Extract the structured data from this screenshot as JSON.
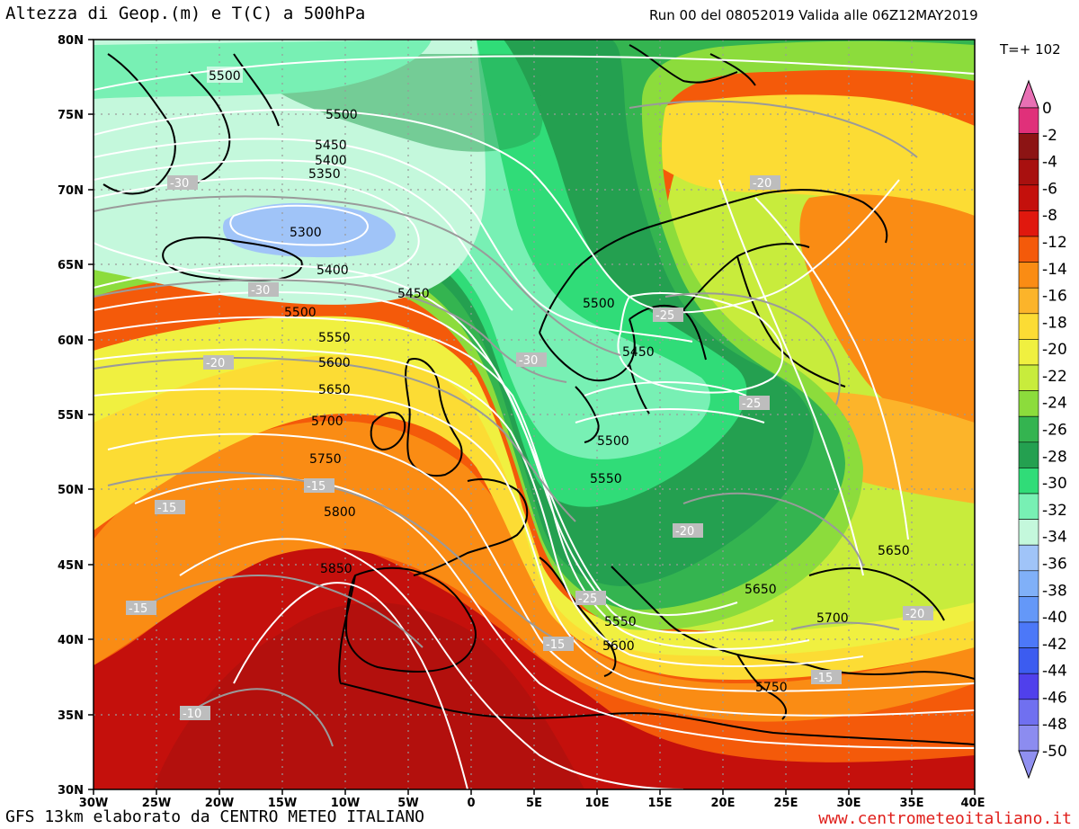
{
  "header": {
    "title": "Altezza di Geop.(m) e T(C) a 500hPa",
    "run": "Run 00 del 08052019  Valida alle 06Z12MAY2019",
    "forecast_step": "T=+ 102"
  },
  "footer": {
    "model": "GFS 13km elaborato da CENTRO METEO ITALIANO",
    "url": "www.centrometeoitaliano.it"
  },
  "map": {
    "lat_labels": [
      "80N",
      "75N",
      "70N",
      "65N",
      "60N",
      "55N",
      "50N",
      "45N",
      "40N",
      "35N",
      "30N"
    ],
    "lon_labels": [
      "30W",
      "25W",
      "20W",
      "15W",
      "10W",
      "5W",
      "0",
      "5E",
      "10E",
      "15E",
      "20E",
      "25E",
      "30E",
      "35E",
      "40E"
    ],
    "geopotential_labels": [
      "5500",
      "5500",
      "5450",
      "5400",
      "5350",
      "5300",
      "5400",
      "5450",
      "5500",
      "5550",
      "5600",
      "5650",
      "5700",
      "5750",
      "5800",
      "5850",
      "5500",
      "5450",
      "5500",
      "5550",
      "5650",
      "5650",
      "5700",
      "5550",
      "5600",
      "5750"
    ],
    "temperature_labels": [
      "-30",
      "-30",
      "-20",
      "-15",
      "-15",
      "-15",
      "-10",
      "-30",
      "-25",
      "-20",
      "-25",
      "-20",
      "-25",
      "-15",
      "-20",
      "-15"
    ]
  },
  "colorbar": {
    "labels": [
      "0",
      "-2",
      "-4",
      "-6",
      "-8",
      "-12",
      "-14",
      "-16",
      "-18",
      "-20",
      "-22",
      "-24",
      "-26",
      "-28",
      "-30",
      "-32",
      "-34",
      "-36",
      "-38",
      "-40",
      "-42",
      "-44",
      "-46",
      "-48",
      "-50"
    ],
    "colors": [
      "#e0307a",
      "#8c1414",
      "#a8100f",
      "#c4100c",
      "#e0180e",
      "#f45a0a",
      "#fa8c14",
      "#fcb42a",
      "#fcdc34",
      "#f0f040",
      "#c8ec3c",
      "#8cdc3c",
      "#34b450",
      "#24a050",
      "#30dc78",
      "#78f0b4",
      "#c4f8dc",
      "#a0c4f8",
      "#80b0f8",
      "#6498f8",
      "#4c78f8",
      "#3c5cf0",
      "#5040ec",
      "#7070f0",
      "#8c8cf0"
    ],
    "top_arrow_color": "#e870b4",
    "bottom_arrow_color": "#9090f0"
  }
}
